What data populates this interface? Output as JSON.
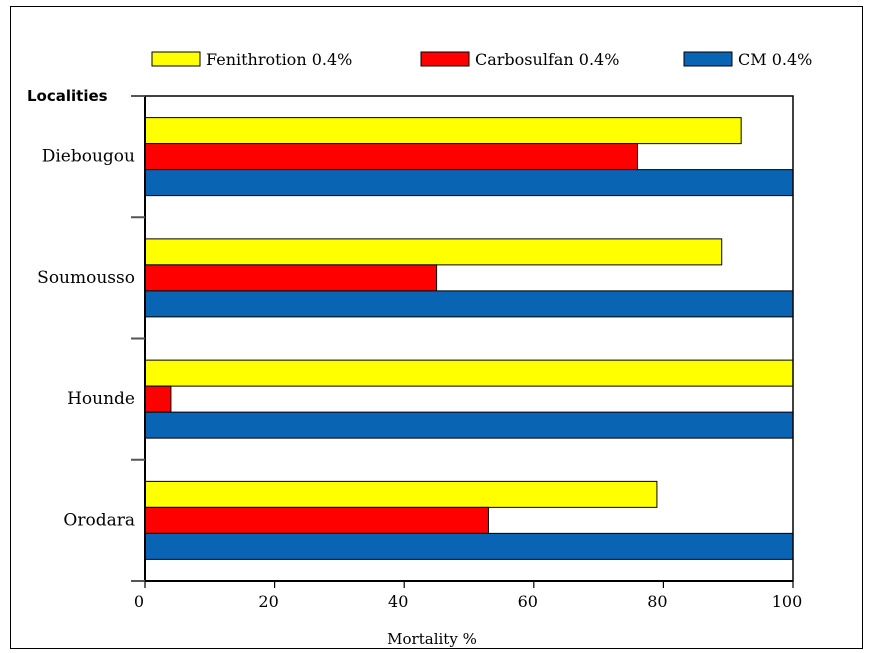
{
  "chart_data": {
    "type": "bar",
    "orientation": "horizontal",
    "title": "",
    "xlabel": "Mortality %",
    "ylabel": "Localities",
    "xlim": [
      0,
      100
    ],
    "xticks": [
      "0",
      "20",
      "40",
      "60",
      "80",
      "100"
    ],
    "categories": [
      "Diebougou",
      "Soumousso",
      "Hounde",
      "Orodara"
    ],
    "series": [
      {
        "name": "Fenithrotion 0.4%",
        "color": "#ffff00",
        "values": [
          92,
          89,
          100,
          79
        ]
      },
      {
        "name": "Carbosulfan 0.4%",
        "color": "#ff0000",
        "values": [
          76,
          45,
          4,
          53
        ]
      },
      {
        "name": "CM 0.4%",
        "color": "#0a64b4",
        "values": [
          100,
          100,
          100,
          100
        ]
      }
    ],
    "legend_position": "top",
    "grid": false
  }
}
